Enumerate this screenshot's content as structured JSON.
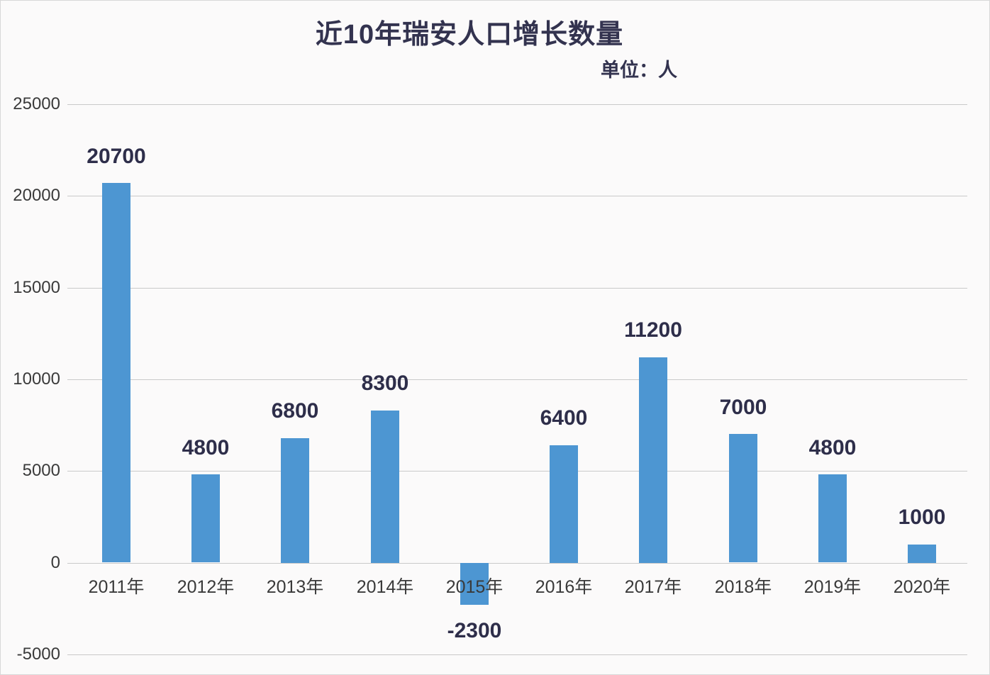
{
  "page": {
    "background_color": "#fbfafa",
    "border_color": "#d8d8d8"
  },
  "chart_data": {
    "type": "bar",
    "title": "近10年瑞安人口增长数量",
    "subtitle": "单位：人",
    "categories": [
      "2011年",
      "2012年",
      "2013年",
      "2014年",
      "2015年",
      "2016年",
      "2017年",
      "2018年",
      "2019年",
      "2020年"
    ],
    "values": [
      20700,
      4800,
      6800,
      8300,
      -2300,
      6400,
      11200,
      7000,
      4800,
      1000
    ],
    "data_labels": [
      "20700",
      "4800",
      "6800",
      "8300",
      "-2300",
      "6400",
      "11200",
      "7000",
      "4800",
      "1000"
    ],
    "y_ticks": [
      25000,
      20000,
      15000,
      10000,
      5000,
      0,
      -5000
    ],
    "y_tick_labels": [
      "25000",
      "20000",
      "15000",
      "10000",
      "5000",
      "0",
      "-5000"
    ],
    "ylim": [
      -5000,
      25000
    ],
    "xlabel": "",
    "ylabel": "",
    "grid": true,
    "legend": false,
    "bar_color": "#4d96d2",
    "data_label_color": "#2e2e4a",
    "axis_text_color": "#3a3a3a",
    "gridline_color": "#c9c9c9",
    "title_color": "#33334f"
  }
}
